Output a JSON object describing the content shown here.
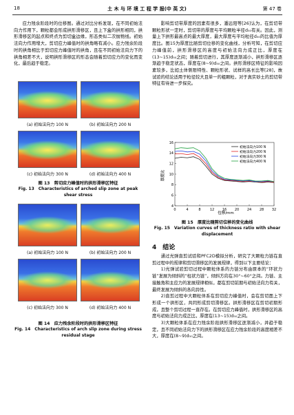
{
  "header": {
    "page_number": "18",
    "journal": "土 木 与 环 境 工 程 学 报(中 英 文)",
    "volume": "第 47 卷"
  },
  "left_column": {
    "paragraph": "应力残余阶段时的位移图。通过对比分析发现，在不同初始法向力作用下，颗粒都会形成拱形滑移区，且上下盒的拱形相同，拱形滑移区的起点和终点为剪切盒边缘，形态类似二次抛物线。初始法向力作用增大，剪切应力峰值时的拱角略有减小。应力残余阶段时的拱角相比于剪切应力峰值时的拱角，且在不同初始法向力下的拱角相差不大，说明拱形滑移区的形态会随着剪切应力的变化而变化，最后趋于稳定。"
  },
  "figure13": {
    "panels": [
      "(a) 初始法向力 100 N",
      "(b) 初始法向力 200 N",
      "(c) 初始法向力 300 N",
      "(d) 初始法向力 400 N"
    ],
    "caption_cn": "图 13　剪切应力峰值时的拱形滑移区特征",
    "caption_en": "Fig. 13　Characteristics of arched slip zone at peak shear stress"
  },
  "figure14": {
    "panels": [
      "(a) 初始法向力 100 N",
      "(b) 初始法向力 200 N",
      "(c) 初始法向力 300 N",
      "(d) 初始法向力 400 N"
    ],
    "caption_cn": "图 14　应力残余阶段时的拱形滑移区特征",
    "caption_en": "Fig. 14　Characteristics of arch slip zone during stress residual stage"
  },
  "right_column": {
    "paragraph": "影响剪切带厚度的因素有很多，潘远阳等[26]认为，在剪切带颗粒形状一定时，剪切带的厚度与平均颗粒半径d₅₀有关。因此，测量上下拱形最高点的最大厚度，最大厚度与平均粒径d₅₀的比值为厚度比。图15为厚度比随剪切位移的变化曲线，分析可知，在剪切应力峰值前，拱形滑移区的高度与初始法向力成正比，厚度在(13~15)d₅₀之间；随着剪切进行，其厚度逐渐减小，拱形滑移区逐渐趋于稳定状态，厚度在(8~9)d₅₀之间。拱形滑移区特征的影响因素较多，比如土体侧限特性、颗粒形状、试样的高长比等[28]，故试验的结论适用于粒径较大且单一的粗颗粒，对于真实砂土的剪切带特征有待进一步探究。"
  },
  "figure15": {
    "chart_data": {
      "type": "line",
      "x_label": "位移/mm",
      "y_label": "厚度比",
      "x": [
        0,
        2,
        4,
        6,
        8,
        10,
        12,
        14,
        16,
        18,
        20,
        22,
        24,
        26,
        28,
        30,
        32
      ],
      "series": [
        {
          "name": "初始法向力100 N",
          "color": "#222222",
          "values": [
            13.0,
            13.2,
            13.1,
            13.3,
            12.8,
            11.5,
            10.0,
            9.2,
            8.8,
            8.7,
            8.6,
            8.5,
            8.6,
            8.5,
            8.4,
            8.5,
            8.4
          ]
        },
        {
          "name": "初始法向力200 N",
          "color": "#e02020",
          "values": [
            13.8,
            13.9,
            13.7,
            13.9,
            13.2,
            12.0,
            10.3,
            9.4,
            8.9,
            8.8,
            8.7,
            8.6,
            8.7,
            8.6,
            8.5,
            8.6,
            8.5
          ]
        },
        {
          "name": "初始法向力300 N",
          "color": "#2040e0",
          "values": [
            14.3,
            14.4,
            14.2,
            14.3,
            13.8,
            12.5,
            10.6,
            9.6,
            9.0,
            8.9,
            8.8,
            8.7,
            8.8,
            8.6,
            8.6,
            8.7,
            8.6
          ]
        },
        {
          "name": "初始法向力400 N",
          "color": "#20a040",
          "values": [
            14.8,
            15.0,
            14.9,
            15.0,
            14.4,
            13.0,
            11.0,
            9.8,
            9.2,
            9.0,
            8.9,
            8.8,
            8.9,
            8.7,
            8.7,
            8.8,
            8.6
          ]
        }
      ],
      "xlim": [
        0,
        32
      ],
      "xticks": [
        0,
        4,
        8,
        12,
        16,
        20,
        24,
        28,
        32
      ],
      "ylim": [
        4,
        16
      ],
      "yticks": [
        4,
        6,
        8,
        10,
        12,
        14,
        16
      ],
      "legend": "upper right"
    },
    "caption_cn": "图 15　厚度比随剪切位移的变化曲线",
    "caption_en": "Fig. 15　Variation curves of thickness ratio with shear displacement"
  },
  "section": {
    "title": "4　结论",
    "paragraphs": [
      "通过光弹直剪试验和PFC2D模拟分析，研究了大颗粒力链在直剪过程中的规律和剪切滑移区的发展规律，得到以下主要结论：",
      "1)光弹试验剪切过程中颗粒体系的力链分布由原本的“环状力链”发展为倾斜的“柱状力链”，倾斜方向在30°~60°之间。力链、主接触角和主应力的发展规律相似，都在剪切前期与初始法向力有关，最终发展为倾斜的各向异性。",
      "2)直剪过程中大颗粒体系在剪切应力峰值时，会在剪切面上下形成一个拱形区，共同形成剪切滑移区。拱形滑移区在剪切初期形成，且整个剪切过程一直存在。在剪切应力峰值时，拱形滑移区的高度与初始法向力成正比，厚度在(13~15)d₅₀之间。",
      "3)大颗粒体系在应力残余阶段拱形滑移区逐渐减小，并趋于稳定，且不同初始法向力下的拱形滑移区在应力残余阶段的高度相差不大，厚度在(8~9)d₅₀之间。"
    ]
  }
}
